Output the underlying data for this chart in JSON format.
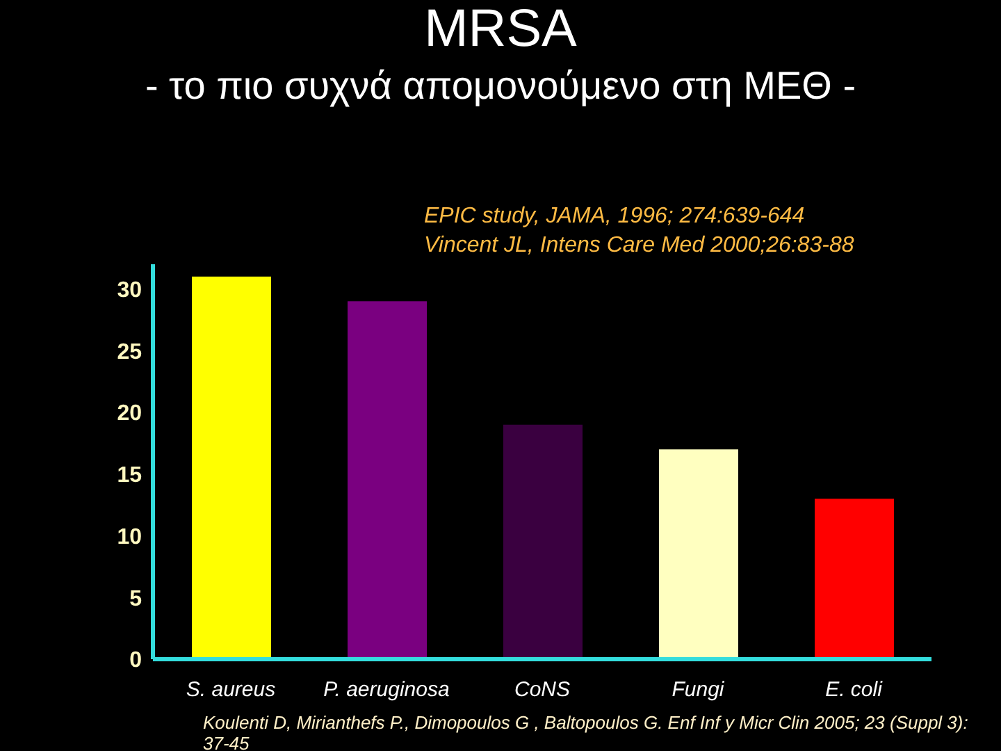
{
  "chart_data": {
    "type": "bar",
    "title": "MRSA",
    "subtitle": "- το πιο συχνά απομονούμενο στη ΜΕΘ -",
    "categories": [
      "S. aureus",
      "P. aeruginosa",
      "CoNS",
      "Fungi",
      "E. coli"
    ],
    "values": [
      31,
      29,
      19,
      17,
      13
    ],
    "colors": [
      "#ffff00",
      "#7a0080",
      "#3a0040",
      "#ffffc0",
      "#ff0000"
    ],
    "ylim": [
      0,
      32
    ],
    "yticks": [
      0,
      5,
      10,
      15,
      20,
      25,
      30
    ],
    "grid": false,
    "annotations": [
      "EPIC study, JAMA, 1996; 274:639-644",
      "Vincent JL, Intens Care Med 2000;26:83-88",
      "Koulenti D, Mirianthefs P., Dimopoulos G , Baltopoulos G. Enf Inf y Micr Clin 2005; 23 (Suppl 3): 37-45"
    ]
  }
}
